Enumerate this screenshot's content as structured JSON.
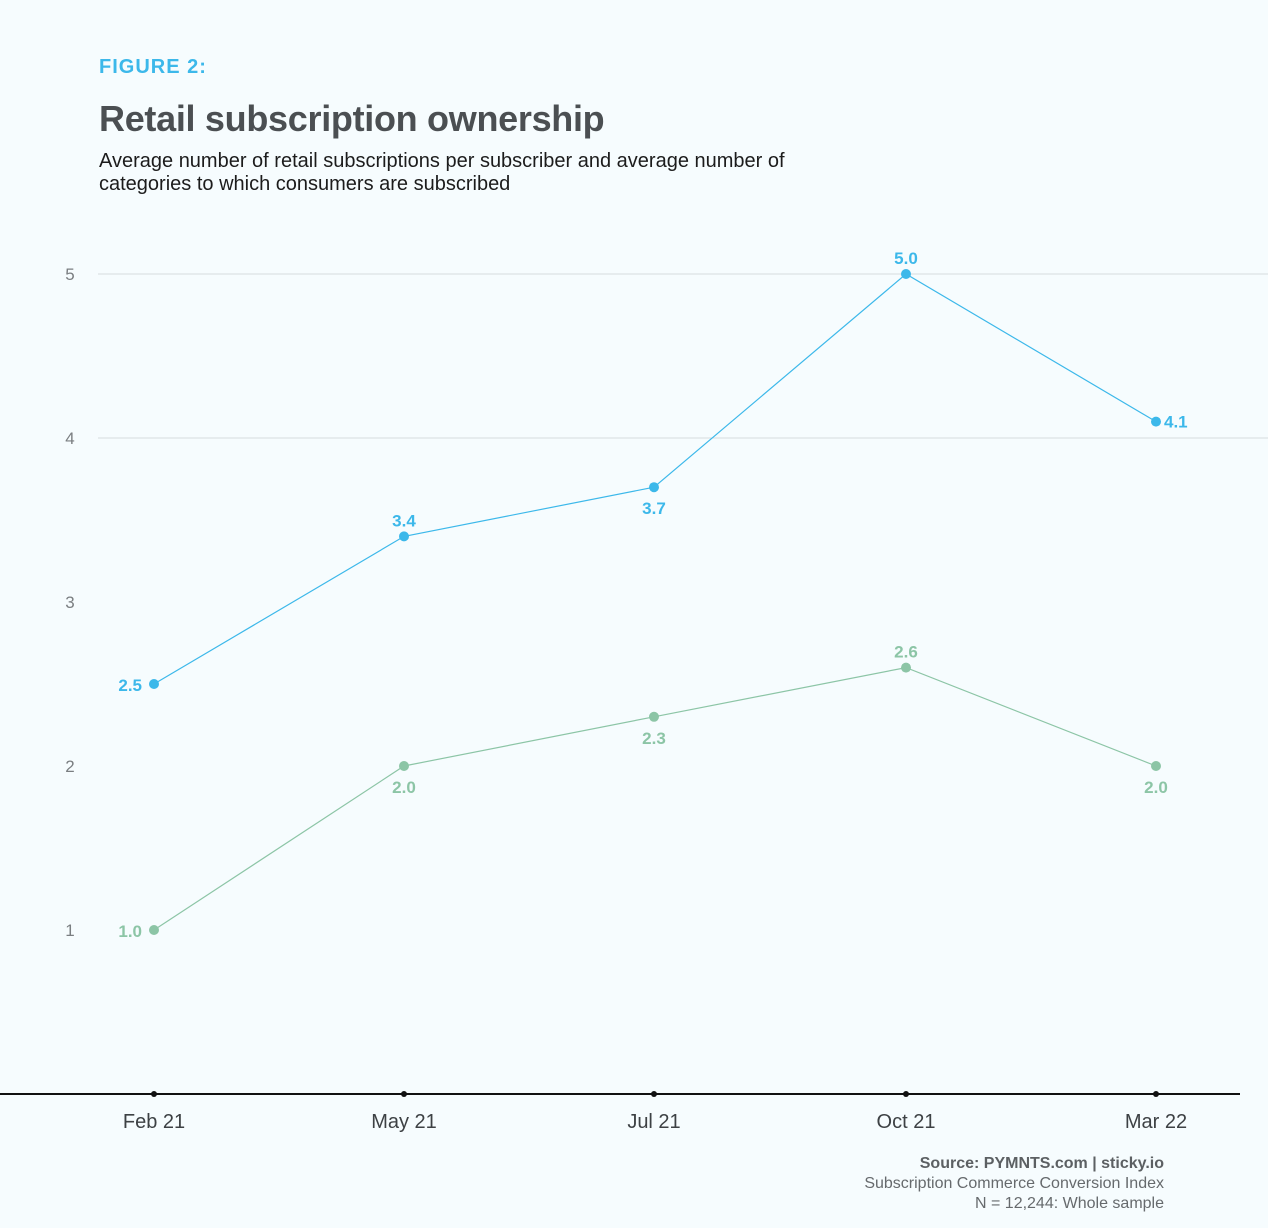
{
  "header": {
    "figure_label": "FIGURE 2:",
    "title": "Retail subscription ownership",
    "subtitle": "Average number of retail subscriptions per subscriber and average number of categories to which consumers are subscribed"
  },
  "chart_data": {
    "type": "line",
    "title": "Retail subscription ownership",
    "categories": [
      "Feb 21",
      "May 21",
      "Jul 21",
      "Oct 21",
      "Mar 22"
    ],
    "ylim": [
      0,
      5
    ],
    "yticks": [
      1,
      2,
      3,
      4,
      5
    ],
    "gridlines": [
      4,
      5
    ],
    "series": [
      {
        "name": "Average number of retail subscriptions per subscriber",
        "color": "#3cb8ea",
        "values": [
          2.5,
          3.4,
          3.7,
          5.0,
          4.1
        ],
        "labels": [
          "2.5",
          "3.4",
          "3.7",
          "5.0",
          "4.1"
        ],
        "label_positions": [
          "left",
          "above",
          "below",
          "above",
          "right"
        ]
      },
      {
        "name": "Average number of categories to which consumers are subscribed",
        "color": "#8cc5a6",
        "values": [
          1.0,
          2.0,
          2.3,
          2.6,
          2.0
        ],
        "labels": [
          "1.0",
          "2.0",
          "2.3",
          "2.6",
          "2.0"
        ],
        "label_positions": [
          "left",
          "below",
          "below",
          "above",
          "below"
        ]
      }
    ]
  },
  "footer": {
    "source": "Source: PYMNTS.com  |  sticky.io",
    "index": "Subscription Commerce Conversion Index",
    "sample": "N = 12,244: Whole sample"
  }
}
